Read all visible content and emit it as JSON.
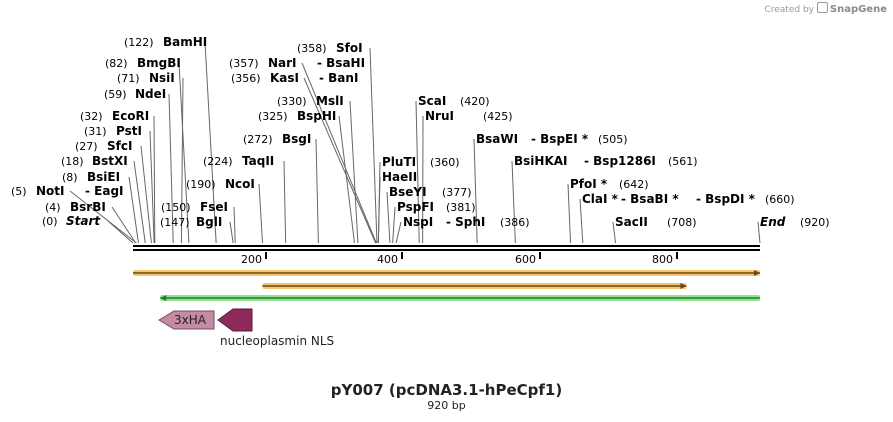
{
  "credit": {
    "prefix": "Created by",
    "brand": "SnapGene"
  },
  "plasmid": {
    "name": "pY007 (pcDNA3.1-hPeCpf1)",
    "length_label": "920 bp",
    "length": 920
  },
  "axis_ticks": [
    "200",
    "400",
    "600",
    "800"
  ],
  "sites": [
    {
      "id": "start",
      "pos": "(0)",
      "name": "Start",
      "italic": true,
      "bp": 0
    },
    {
      "id": "bsrbi",
      "pos": "(4)",
      "name": "BsrBI",
      "bp": 4
    },
    {
      "id": "noti",
      "pos": "(5)",
      "name": "NotI",
      "alt": "EagI",
      "bp": 5
    },
    {
      "id": "bsiei",
      "pos": "(8)",
      "name": "BsiEI",
      "bp": 8
    },
    {
      "id": "bstxi",
      "pos": "(18)",
      "name": "BstXI",
      "bp": 18
    },
    {
      "id": "sfci",
      "pos": "(27)",
      "name": "SfcI",
      "bp": 27
    },
    {
      "id": "psti",
      "pos": "(31)",
      "name": "PstI",
      "bp": 31
    },
    {
      "id": "ecori",
      "pos": "(32)",
      "name": "EcoRI",
      "bp": 32
    },
    {
      "id": "ndei",
      "pos": "(59)",
      "name": "NdeI",
      "bp": 59
    },
    {
      "id": "nsii",
      "pos": "(71)",
      "name": "NsiI",
      "bp": 71
    },
    {
      "id": "bmgbi",
      "pos": "(82)",
      "name": "BmgBI",
      "bp": 82
    },
    {
      "id": "bamhi",
      "pos": "(122)",
      "name": "BamHI",
      "bp": 122
    },
    {
      "id": "bgli",
      "pos": "(147)",
      "name": "BglI",
      "bp": 147
    },
    {
      "id": "fsei",
      "pos": "(150)",
      "name": "FseI",
      "bp": 150
    },
    {
      "id": "ncoi",
      "pos": "(190)",
      "name": "NcoI",
      "bp": 190
    },
    {
      "id": "taqii",
      "pos": "(224)",
      "name": "TaqII",
      "bp": 224
    },
    {
      "id": "bsgi",
      "pos": "(272)",
      "name": "BsgI",
      "bp": 272
    },
    {
      "id": "bsphi",
      "pos": "(325)",
      "name": "BspHI",
      "bp": 325
    },
    {
      "id": "msli",
      "pos": "(330)",
      "name": "MslI",
      "bp": 330
    },
    {
      "id": "kasi",
      "pos": "(356)",
      "name": "KasI",
      "alt": "BanI",
      "bp": 356
    },
    {
      "id": "nari",
      "pos": "(357)",
      "name": "NarI",
      "alt": "BsaHI",
      "bp": 357
    },
    {
      "id": "sfoi",
      "pos": "(358)",
      "name": "SfoI",
      "bp": 358
    },
    {
      "id": "pluti",
      "pos": "(360)",
      "name": "PluTI",
      "bp": 360
    },
    {
      "id": "haeii",
      "pos": "",
      "name": "HaeII",
      "bp": 360
    },
    {
      "id": "bseyi",
      "pos": "(377)",
      "name": "BseYI",
      "bp": 377
    },
    {
      "id": "pspfi",
      "pos": "(381)",
      "name": "PspFI",
      "bp": 381
    },
    {
      "id": "nspi",
      "pos": "(386)",
      "name": "NspI",
      "alt": "SphI",
      "bp": 386
    },
    {
      "id": "scai",
      "pos": "(420)",
      "name": "ScaI",
      "bp": 420
    },
    {
      "id": "nrui",
      "pos": "(425)",
      "name": "NruI",
      "bp": 425
    },
    {
      "id": "bsawi",
      "pos": "(505)",
      "name": "BsaWI",
      "alt": "BspEI *",
      "bp": 505
    },
    {
      "id": "bsihkai",
      "pos": "(561)",
      "name": "BsiHKAI",
      "alt": "Bsp1286I",
      "bp": 561
    },
    {
      "id": "pfoi",
      "pos": "(642)",
      "name": "PfoI *",
      "bp": 642
    },
    {
      "id": "clai",
      "pos": "(660)",
      "name": "ClaI *",
      "alt": "BsaBI *",
      "alt2": "BspDI *",
      "bp": 660
    },
    {
      "id": "sacii",
      "pos": "(708)",
      "name": "SacII",
      "bp": 708
    },
    {
      "id": "end",
      "pos": "(920)",
      "name": "End",
      "italic": true,
      "bp": 920
    }
  ],
  "features": [
    {
      "id": "feature-orange-long",
      "direction": "forward",
      "color": "#f0a030",
      "start_bp": 0,
      "end_bp": 920
    },
    {
      "id": "feature-orange-short",
      "direction": "forward",
      "color": "#f0a030",
      "start_bp": 190,
      "end_bp": 812
    },
    {
      "id": "feature-green",
      "direction": "reverse",
      "color": "#5ec85e",
      "start_bp": 40,
      "end_bp": 920
    }
  ],
  "annotations": [
    {
      "id": "3xha",
      "label": "3xHA",
      "color": "#c48ba4"
    },
    {
      "id": "nls",
      "label": "nucleoplasmin NLS",
      "color": "#8c2a5c"
    }
  ]
}
